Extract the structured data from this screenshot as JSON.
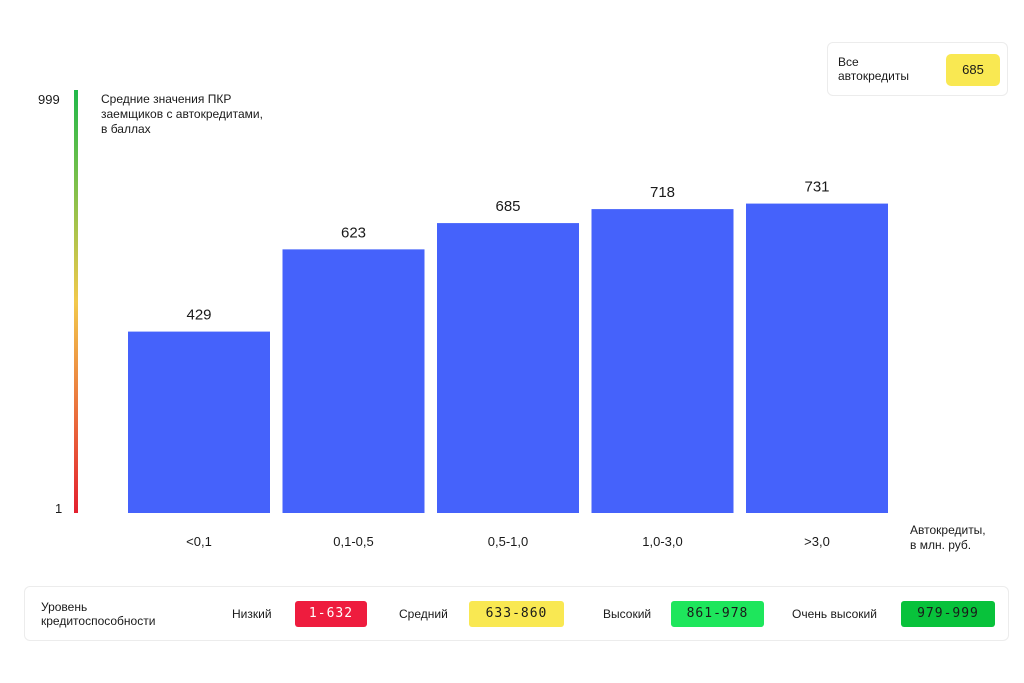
{
  "chart_data": {
    "type": "bar",
    "title": "Средние значения ПКР\nзаемщиков с автокредитами,\nв баллах",
    "xlabel": "Автокредиты,\nв млн. руб.",
    "ylabel": "",
    "ylim": [
      1,
      999
    ],
    "y_tick_labels": [
      "999",
      "1"
    ],
    "categories": [
      "<0,1",
      "0,1-0,5",
      "0,5-1,0",
      "1,0-3,0",
      ">3,0"
    ],
    "values": [
      429,
      623,
      685,
      718,
      731
    ],
    "data_labels": [
      "429",
      "623",
      "685",
      "718",
      "731"
    ],
    "grid": false,
    "bar_color": "#4562fb",
    "axis_gradient": [
      "#e3202f",
      "#f2c94c",
      "#1fb84a"
    ]
  },
  "summary": {
    "label": "Все\nавтокредиты",
    "value": "685",
    "color": "#f9e852"
  },
  "legend": {
    "title": "Уровень\nкредитоспособности",
    "items": [
      {
        "name": "Низкий",
        "range": "1-632",
        "color": "#ee1c3e",
        "text_color": "#ffffff"
      },
      {
        "name": "Средний",
        "range": "633-860",
        "color": "#f9e852",
        "text_color": "#1a1a1a"
      },
      {
        "name": "Высокий",
        "range": "861-978",
        "color": "#1ee65c",
        "text_color": "#1a1a1a"
      },
      {
        "name": "Очень высокий",
        "range": "979-999",
        "color": "#08c23b",
        "text_color": "#1a1a1a"
      }
    ]
  }
}
